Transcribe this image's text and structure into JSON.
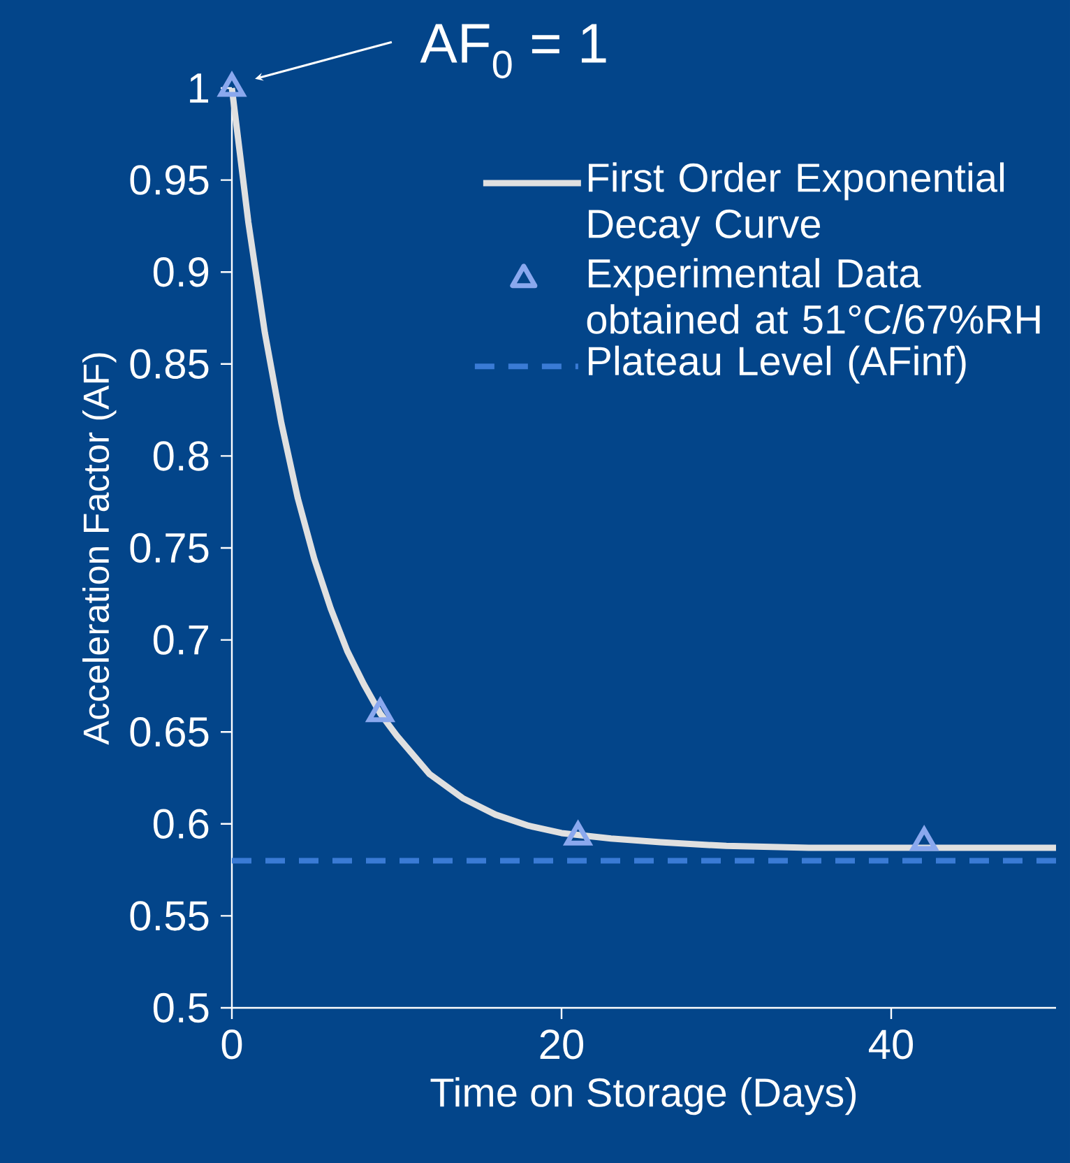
{
  "chart_data": {
    "type": "line",
    "xlabel": "Time on Storage (Days)",
    "ylabel": "Acceleration Factor (AF)",
    "xlim": [
      0,
      50
    ],
    "ylim": [
      0.5,
      1
    ],
    "xticks": [
      0,
      20,
      40
    ],
    "yticks": [
      0.5,
      0.55,
      0.6,
      0.65,
      0.7,
      0.75,
      0.8,
      0.85,
      0.9,
      0.95,
      1
    ],
    "legend": "top right",
    "annotations": [
      "AF$_{0}$ = 1"
    ],
    "series": [
      {
        "name": "First Order Exponential Decay Curve",
        "color": "#e0e0e0",
        "x": [
          0,
          1,
          2,
          3,
          4,
          5,
          6,
          7,
          8,
          9,
          10,
          12,
          14,
          16,
          18,
          20,
          23,
          26,
          30,
          35,
          40,
          50
        ],
        "values": [
          1,
          0.927,
          0.867,
          0.818,
          0.777,
          0.744,
          0.717,
          0.694,
          0.676,
          0.66,
          0.648,
          0.627,
          0.614,
          0.605,
          0.599,
          0.595,
          0.592,
          0.59,
          0.588,
          0.587,
          0.587,
          0.587
        ]
      },
      {
        "name": "Experimental Data obtained at 51°C/67%RH",
        "type": "scatter",
        "color": "#8aa8ee",
        "marker": "triangle",
        "x": [
          0,
          9,
          21,
          42
        ],
        "values": [
          1,
          0.66,
          0.593,
          0.59
        ]
      }
    ],
    "ref_lines": [
      {
        "axis": "y",
        "value": 0.58,
        "label": "Plateau Level (AFinf)",
        "color": "#3a7bd5",
        "line_style": "dashed"
      }
    ]
  }
}
